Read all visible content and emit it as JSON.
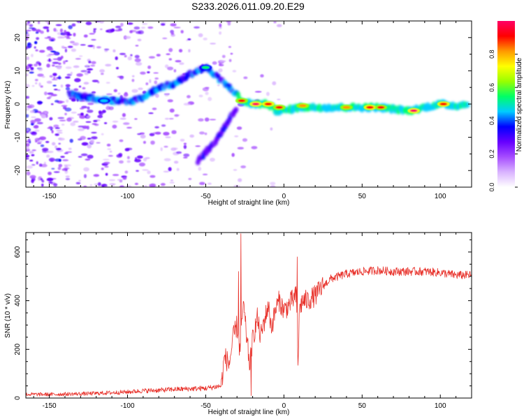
{
  "figure_title": "S233.2026.011.09.20.E29",
  "chart_data": [
    {
      "type": "heatmap",
      "name": "spectrogram",
      "xlabel": "Height of straight line (km)",
      "ylabel": "Frequency (Hz)",
      "xlim": [
        -165,
        120
      ],
      "ylim": [
        -25,
        25
      ],
      "xticks": [
        -150,
        -100,
        -50,
        0,
        50,
        100
      ],
      "yticks": [
        -20,
        -10,
        0,
        10,
        20
      ],
      "colorbar": {
        "label": "Normalized spectral amplitude",
        "range": [
          0,
          1
        ],
        "ticks": [
          0.0,
          0.2,
          0.4,
          0.6,
          0.8
        ],
        "colormap": [
          "#ffffff",
          "#d9b3ff",
          "#a64dff",
          "#6600ff",
          "#0000ff",
          "#00ccff",
          "#00ff66",
          "#99ff00",
          "#ffff00",
          "#ff9900",
          "#ff0000",
          "#ff0066"
        ]
      },
      "ridges": [
        {
          "name": "main-ridge",
          "points": [
            [
              -137,
              3
            ],
            [
              -125,
              2
            ],
            [
              -110,
              1
            ],
            [
              -100,
              0.5
            ],
            [
              -90,
              2
            ],
            [
              -80,
              5
            ],
            [
              -70,
              6
            ],
            [
              -60,
              9
            ],
            [
              -50,
              11
            ],
            [
              -40,
              7
            ],
            [
              -30,
              3
            ],
            [
              -28,
              1
            ],
            [
              -20,
              0
            ],
            [
              -10,
              0
            ],
            [
              -5,
              -2
            ],
            [
              0,
              -2
            ],
            [
              10,
              -1
            ],
            [
              20,
              -1
            ],
            [
              40,
              -1
            ],
            [
              60,
              -1
            ],
            [
              80,
              -2
            ],
            [
              100,
              0
            ],
            [
              110,
              -0.5
            ],
            [
              118,
              0
            ]
          ]
        },
        {
          "name": "lower-branch",
          "points": [
            [
              -55,
              -17
            ],
            [
              -45,
              -12
            ],
            [
              -38,
              -7
            ],
            [
              -33,
              -3
            ],
            [
              -30,
              -1
            ]
          ]
        }
      ],
      "hot_spots": [
        {
          "x": -18,
          "y": 0,
          "level": 1.0
        },
        {
          "x": -10,
          "y": 0,
          "level": 0.95
        },
        {
          "x": -3,
          "y": -1,
          "level": 0.9
        },
        {
          "x": 12,
          "y": -0.5,
          "level": 0.85
        },
        {
          "x": 40,
          "y": -1,
          "level": 0.8
        },
        {
          "x": 55,
          "y": -1,
          "level": 0.95
        },
        {
          "x": 62,
          "y": -1,
          "level": 0.9
        },
        {
          "x": 83,
          "y": -2,
          "level": 1.0
        },
        {
          "x": 102,
          "y": 0,
          "level": 0.95
        },
        {
          "x": -27,
          "y": 1,
          "level": 0.9
        },
        {
          "x": -50,
          "y": 11,
          "level": 0.5
        },
        {
          "x": -115,
          "y": 1,
          "level": 0.45
        }
      ]
    },
    {
      "type": "line",
      "name": "snr",
      "xlabel": "Height of straight line (km)",
      "ylabel": "SNR (10 * v/v)",
      "xlim": [
        -165,
        120
      ],
      "ylim": [
        0,
        680
      ],
      "xticks": [
        -150,
        -100,
        -50,
        0,
        50,
        100
      ],
      "yticks": [
        0,
        200,
        400,
        600
      ],
      "color": "#e8312a",
      "series": [
        {
          "name": "SNR envelope",
          "x": [
            -165,
            -150,
            -125,
            -110,
            -100,
            -90,
            -80,
            -70,
            -60,
            -50,
            -45,
            -40,
            -38,
            -35,
            -32,
            -30,
            -28,
            -26,
            -24,
            -22,
            -20,
            -17,
            -15,
            -12,
            -10,
            -8,
            -5,
            -3,
            0,
            3,
            5,
            8,
            9,
            10,
            12,
            15,
            20,
            25,
            30,
            40,
            50,
            60,
            70,
            80,
            90,
            100,
            110,
            120
          ],
          "values": [
            15,
            15,
            18,
            22,
            25,
            30,
            32,
            36,
            38,
            40,
            45,
            50,
            170,
            140,
            260,
            300,
            180,
            390,
            260,
            140,
            240,
            330,
            250,
            330,
            380,
            290,
            370,
            400,
            360,
            380,
            400,
            420,
            140,
            370,
            400,
            400,
            420,
            460,
            490,
            510,
            520,
            525,
            520,
            520,
            520,
            515,
            505,
            505
          ]
        }
      ],
      "spikes": [
        {
          "x": -27.5,
          "value": 675
        },
        {
          "x": -29,
          "value": 520
        },
        {
          "x": 8.5,
          "value": 580
        },
        {
          "x": -21,
          "value": 10
        }
      ]
    }
  ]
}
